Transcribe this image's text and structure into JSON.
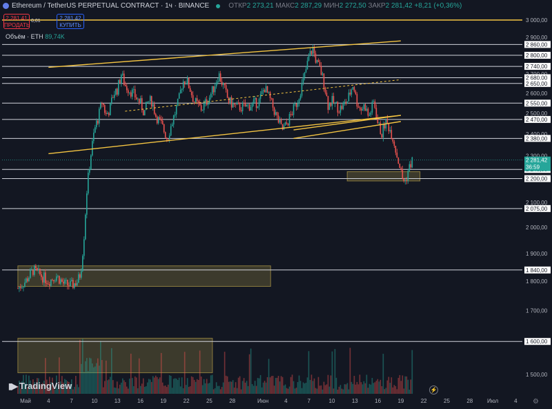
{
  "header": {
    "title": "Ethereum / TetherUS PERPETUAL CONTRACT · 1ч · BINANCE",
    "open_label": "ОТКР",
    "open": "2 273,21",
    "high_label": "МАКС",
    "high": "2 287,29",
    "low_label": "МИН",
    "low": "2 272,50",
    "close_label": "ЗАКР",
    "close": "2 281,42",
    "change": "+8,21 (+0,36%)"
  },
  "trade": {
    "sell_price": "2 281,41",
    "sell_label": "ПРОДАТЬ",
    "spread": "0,01",
    "buy_price": "2 281,42",
    "buy_label": "КУПИТЬ"
  },
  "volume": {
    "label": "Объём · ETH",
    "value": "89,74K"
  },
  "logo": "TradingView",
  "colors": {
    "background": "#131722",
    "up": "#26a69a",
    "down": "#ef5350",
    "trendline": "#f5c542",
    "zone": "#8a7a3e",
    "level_line": "#d1d4dc"
  },
  "chart_data": {
    "type": "candlestick",
    "symbol": "ETHUSDT.P",
    "timeframe": "1ч",
    "y_scale": "log",
    "ylim": [
      1440,
      3060
    ],
    "x_ticks": [
      "Май",
      "4",
      "7",
      "10",
      "13",
      "16",
      "19",
      "22",
      "25",
      "28",
      "Июн",
      "4",
      "7",
      "10",
      "13",
      "16",
      "19",
      "22",
      "25",
      "28",
      "Июл",
      "4"
    ],
    "y_ticks": [
      3000,
      2900,
      2800,
      2700,
      2600,
      2500,
      2400,
      2300,
      2200,
      2100,
      2000,
      1900,
      1800,
      1700,
      1600,
      1500
    ],
    "y_tick_labels": [
      "3 000,00",
      "2 900,00",
      "2 800,00",
      "2 700,00",
      "2 600,00",
      "2 500,00",
      "2 400,00",
      "2 300,00",
      "2 200,00",
      "2 100,00",
      "2 000,00",
      "1 900,00",
      "1 800,00",
      "1 700,00",
      "1 600,00",
      "1 500,00"
    ],
    "levels": [
      {
        "value": 2860,
        "label": "2 860,00"
      },
      {
        "value": 2800,
        "label": "2 800,00"
      },
      {
        "value": 2740,
        "label": "2 740,00"
      },
      {
        "value": 2680,
        "label": "2 680,00"
      },
      {
        "value": 2650,
        "label": "2 650,00"
      },
      {
        "value": 2550,
        "label": "2 550,00"
      },
      {
        "value": 2470,
        "label": "2 470,00"
      },
      {
        "value": 2380,
        "label": "2 380,00"
      },
      {
        "value": 2240,
        "label": "2 240,00"
      },
      {
        "value": 2200,
        "label": "2 200,00"
      },
      {
        "value": 2075,
        "label": "2 075,00"
      },
      {
        "value": 1840,
        "label": "1 840,00"
      },
      {
        "value": 1600,
        "label": "1 600,00"
      }
    ],
    "highlight_level": {
      "value": 3000
    },
    "current_price": {
      "value": 2281.42,
      "label": "2 281,42",
      "countdown": "36:59"
    },
    "trendlines": [
      {
        "from": [
          3,
          2735
        ],
        "to": [
          49,
          2880
        ]
      },
      {
        "from": [
          3,
          2310
        ],
        "to": [
          49,
          2490
        ]
      },
      {
        "from": [
          13,
          2510
        ],
        "to": [
          49,
          2670
        ],
        "dashed": true
      },
      {
        "from": [
          35,
          2420
        ],
        "to": [
          49,
          2490
        ]
      },
      {
        "from": [
          35,
          2380
        ],
        "to": [
          49,
          2460
        ]
      }
    ],
    "zones": [
      {
        "x": [
          -1,
          32
        ],
        "y": [
          1782,
          1855
        ]
      },
      {
        "x": [
          -1,
          24.4
        ],
        "y": [
          1505,
          1610
        ]
      },
      {
        "x": [
          42,
          51.5
        ],
        "y": [
          2190,
          2230
        ]
      }
    ],
    "price_path": [
      [
        -1,
        1775
      ],
      [
        0,
        1800
      ],
      [
        1,
        1840
      ],
      [
        2,
        1820
      ],
      [
        3,
        1800
      ],
      [
        4,
        1820
      ],
      [
        5,
        1790
      ],
      [
        6,
        1785
      ],
      [
        6.8,
        1800
      ],
      [
        7.2,
        1830
      ],
      [
        7.6,
        1950
      ],
      [
        8,
        2150
      ],
      [
        8.5,
        2300
      ],
      [
        9,
        2420
      ],
      [
        9.5,
        2480
      ],
      [
        10,
        2560
      ],
      [
        10.5,
        2490
      ],
      [
        11,
        2520
      ],
      [
        11.5,
        2600
      ],
      [
        12,
        2620
      ],
      [
        12.5,
        2700
      ],
      [
        13,
        2640
      ],
      [
        14,
        2600
      ],
      [
        15,
        2550
      ],
      [
        15.5,
        2500
      ],
      [
        16,
        2560
      ],
      [
        16.5,
        2560
      ],
      [
        17,
        2490
      ],
      [
        17.8,
        2440
      ],
      [
        18.5,
        2380
      ],
      [
        19,
        2440
      ],
      [
        20,
        2560
      ],
      [
        20.5,
        2660
      ],
      [
        21,
        2670
      ],
      [
        21.5,
        2620
      ],
      [
        22,
        2560
      ],
      [
        23,
        2520
      ],
      [
        24,
        2580
      ],
      [
        24.6,
        2630
      ],
      [
        25.2,
        2700
      ],
      [
        25.8,
        2640
      ],
      [
        26.5,
        2560
      ],
      [
        27.5,
        2530
      ],
      [
        28.5,
        2530
      ],
      [
        29.5,
        2540
      ],
      [
        30.5,
        2560
      ],
      [
        31.2,
        2630
      ],
      [
        32,
        2560
      ],
      [
        32.8,
        2480
      ],
      [
        33.5,
        2420
      ],
      [
        34,
        2440
      ],
      [
        34.5,
        2480
      ],
      [
        35,
        2520
      ],
      [
        35.5,
        2560
      ],
      [
        36,
        2630
      ],
      [
        36.5,
        2700
      ],
      [
        37,
        2790
      ],
      [
        37.5,
        2840
      ],
      [
        38,
        2760
      ],
      [
        38.5,
        2720
      ],
      [
        39,
        2650
      ],
      [
        39.5,
        2540
      ],
      [
        40,
        2560
      ],
      [
        41,
        2520
      ],
      [
        42,
        2560
      ],
      [
        42.8,
        2650
      ],
      [
        43.2,
        2560
      ],
      [
        43.8,
        2520
      ],
      [
        44.3,
        2540
      ],
      [
        44.8,
        2480
      ],
      [
        45.5,
        2560
      ],
      [
        46,
        2450
      ],
      [
        46.5,
        2400
      ],
      [
        47,
        2460
      ],
      [
        47.5,
        2430
      ],
      [
        48,
        2380
      ],
      [
        48.5,
        2300
      ],
      [
        48.9,
        2250
      ],
      [
        49.2,
        2200
      ],
      [
        49.6,
        2190
      ],
      [
        50,
        2240
      ],
      [
        50.5,
        2281.42
      ]
    ],
    "volume_profile": {
      "max_day": 50.5
    }
  }
}
